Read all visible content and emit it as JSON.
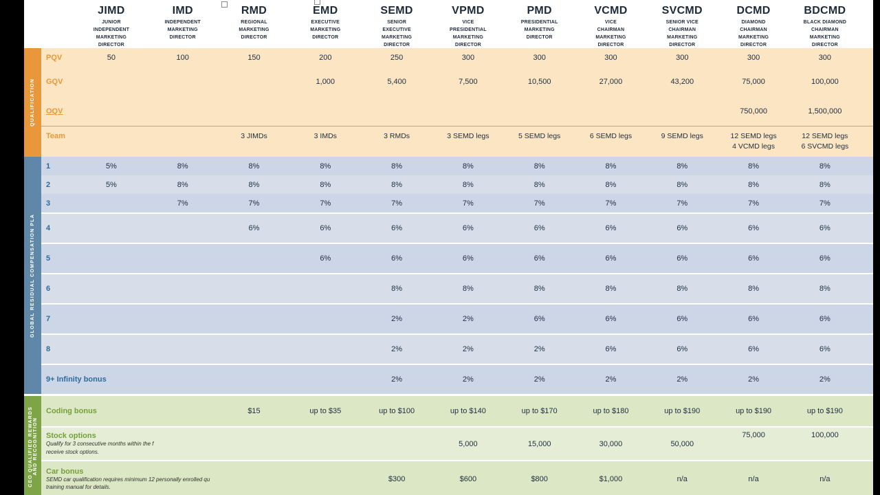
{
  "colors": {
    "qualification_accent": "#E8973B",
    "qualification_bg": "#FBE5C2",
    "residual_accent": "#5E87A8",
    "residual_label": "#2E6B9C",
    "residual_bg_odd": "#CCD6E6",
    "residual_bg_even": "#D7DEEA",
    "rewards_accent": "#7EA448",
    "rewards_label": "#75A038",
    "rewards_bg_odd": "#DCE7C5",
    "rewards_bg_even": "#E5EDD6",
    "header_text": "#1E2A38",
    "value_text": "#223042"
  },
  "columns": [
    {
      "abbr": "JIMD",
      "title": "JUNIOR\nINDEPENDENT\nMARKETING\nDIRECTOR"
    },
    {
      "abbr": "IMD",
      "title": "INDEPENDENT\nMARKETING\nDIRECTOR"
    },
    {
      "abbr": "RMD",
      "title": "REGIONAL\nMARKETING\nDIRECTOR"
    },
    {
      "abbr": "EMD",
      "title": "EXECUTIVE\nMARKETING\nDIRECTOR"
    },
    {
      "abbr": "SEMD",
      "title": "SENIOR\nEXECUTIVE\nMARKETING\nDIRECTOR"
    },
    {
      "abbr": "VPMD",
      "title": "VICE\nPRESIDENTIAL\nMARKETING\nDIRECTOR"
    },
    {
      "abbr": "PMD",
      "title": "PRESIDENTIAL\nMARKETING\nDIRECTOR"
    },
    {
      "abbr": "VCMD",
      "title": "VICE\nCHAIRMAN\nMARKETING\nDIRECTOR"
    },
    {
      "abbr": "SVCMD",
      "title": "SENIOR VICE\nCHAIRMAN\nMARKETING\nDIRECTOR"
    },
    {
      "abbr": "DCMD",
      "title": "DIAMOND\nCHAIRMAN\nMARKETING\nDIRECTOR"
    },
    {
      "abbr": "BDCMD",
      "title": "BLACK DIAMOND\nCHAIRMAN\nMARKETING\nDIRECTOR"
    }
  ],
  "sections": {
    "qualification": {
      "label": "QUALIFICATION",
      "rows": [
        {
          "label": "PQV",
          "values": [
            "50",
            "100",
            "150",
            "200",
            "250",
            "300",
            "300",
            "300",
            "300",
            "300",
            "300"
          ]
        },
        {
          "label": "GQV",
          "values": [
            "",
            "",
            "",
            "1,000",
            "5,400",
            "7,500",
            "10,500",
            "27,000",
            "43,200",
            "75,000",
            "100,000"
          ]
        },
        {
          "label": "OQV",
          "link": true,
          "values": [
            "",
            "",
            "",
            "",
            "",
            "",
            "",
            "",
            "",
            "750,000",
            "1,500,000"
          ]
        },
        {
          "label": "Team",
          "values": [
            "",
            "",
            "3 JIMDs",
            "3 IMDs",
            "3 RMDs",
            "3 SEMD legs",
            "5 SEMD legs",
            "6 SEMD legs",
            "9 SEMD legs",
            "12 SEMD legs\n4 VCMD legs",
            "12 SEMD legs\n6 SVCMD legs"
          ]
        }
      ]
    },
    "residual": {
      "label": "GLOBAL RESIDUAL COMPENSATION PLA",
      "rows": [
        {
          "label": "1",
          "values": [
            "5%",
            "8%",
            "8%",
            "8%",
            "8%",
            "8%",
            "8%",
            "8%",
            "8%",
            "8%",
            "8%"
          ]
        },
        {
          "label": "2",
          "values": [
            "5%",
            "8%",
            "8%",
            "8%",
            "8%",
            "8%",
            "8%",
            "8%",
            "8%",
            "8%",
            "8%"
          ]
        },
        {
          "label": "3",
          "values": [
            "",
            "7%",
            "7%",
            "7%",
            "7%",
            "7%",
            "7%",
            "7%",
            "7%",
            "7%",
            "7%"
          ]
        },
        {
          "label": "4",
          "values": [
            "",
            "",
            "6%",
            "6%",
            "6%",
            "6%",
            "6%",
            "6%",
            "6%",
            "6%",
            "6%"
          ]
        },
        {
          "label": "5",
          "values": [
            "",
            "",
            "",
            "6%",
            "6%",
            "6%",
            "6%",
            "6%",
            "6%",
            "6%",
            "6%"
          ]
        },
        {
          "label": "6",
          "values": [
            "",
            "",
            "",
            "",
            "8%",
            "8%",
            "8%",
            "8%",
            "8%",
            "8%",
            "8%"
          ]
        },
        {
          "label": "7",
          "values": [
            "",
            "",
            "",
            "",
            "2%",
            "2%",
            "6%",
            "6%",
            "6%",
            "6%",
            "6%"
          ]
        },
        {
          "label": "8",
          "values": [
            "",
            "",
            "",
            "",
            "2%",
            "2%",
            "2%",
            "6%",
            "6%",
            "6%",
            "6%"
          ]
        },
        {
          "label": "9+ Infinity bonus",
          "values": [
            "",
            "",
            "",
            "",
            "2%",
            "2%",
            "2%",
            "2%",
            "2%",
            "2%",
            "2%"
          ]
        }
      ]
    },
    "rewards": {
      "label_line1": "CEO QUALIFIED REWARDS",
      "label_line2": "AND RECOGNITION",
      "rows": [
        {
          "label": "Coding bonus",
          "values": [
            "",
            "",
            "$15",
            "up to $35",
            "up to $100",
            "up to $140",
            "up to $170",
            "up to $180",
            "up to $190",
            "up to $190",
            "up to $190"
          ]
        },
        {
          "label": "Stock options",
          "note_lines": [
            "Qualify for 3 consecutive months within the f",
            "receive stock options."
          ],
          "values": [
            "",
            "",
            "",
            "",
            "",
            "5,000",
            "15,000",
            "30,000",
            "50,000",
            "75,000",
            "100,000"
          ]
        },
        {
          "label": "Car bonus",
          "note_lines": [
            "SEMD car qualification requires minimum 12 personally enrolled qu",
            "training manual for details."
          ],
          "values": [
            "",
            "",
            "",
            "",
            "$300",
            "$600",
            "$800",
            "$1,000",
            "n/a",
            "n/a",
            "n/a"
          ]
        }
      ]
    }
  }
}
